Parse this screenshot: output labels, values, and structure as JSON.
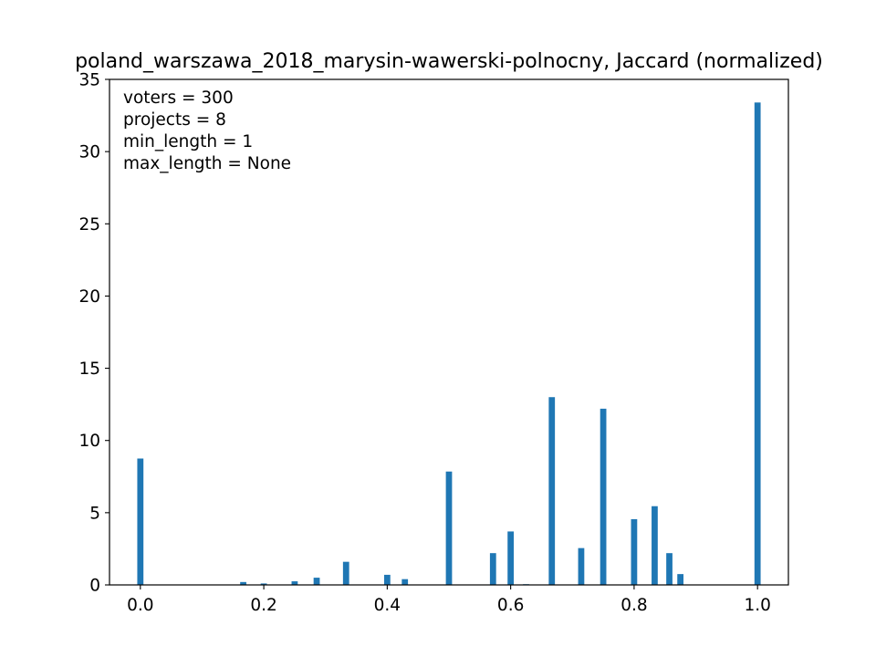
{
  "chart_data": {
    "type": "bar",
    "title": "poland_warszawa_2018_marysin-wawerski-polnocny, Jaccard (normalized)",
    "xlabel": "",
    "ylabel": "",
    "xlim": [
      -0.05,
      1.05
    ],
    "ylim": [
      0,
      35
    ],
    "bar_width": 0.01,
    "bar_color": "#1f77b4",
    "x_ticks": [
      0.0,
      0.2,
      0.4,
      0.6,
      0.8,
      1.0
    ],
    "x_tick_labels": [
      "0.0",
      "0.2",
      "0.4",
      "0.6",
      "0.8",
      "1.0"
    ],
    "y_ticks": [
      0,
      5,
      10,
      15,
      20,
      25,
      30,
      35
    ],
    "y_tick_labels": [
      "0",
      "5",
      "10",
      "15",
      "20",
      "25",
      "30",
      "35"
    ],
    "annotation_lines": [
      "voters = 300",
      "projects = 8",
      "min_length = 1",
      "max_length = None"
    ],
    "x": [
      0.0,
      0.1667,
      0.2,
      0.25,
      0.2857,
      0.3333,
      0.4,
      0.4286,
      0.5,
      0.5714,
      0.6,
      0.625,
      0.6667,
      0.7143,
      0.75,
      0.8,
      0.8333,
      0.8571,
      0.875,
      1.0
    ],
    "values": [
      8.75,
      0.2,
      0.1,
      0.25,
      0.5,
      1.6,
      0.7,
      0.4,
      7.85,
      2.2,
      3.7,
      0.05,
      13.0,
      2.55,
      12.2,
      4.55,
      5.45,
      2.2,
      0.75,
      33.4
    ]
  }
}
